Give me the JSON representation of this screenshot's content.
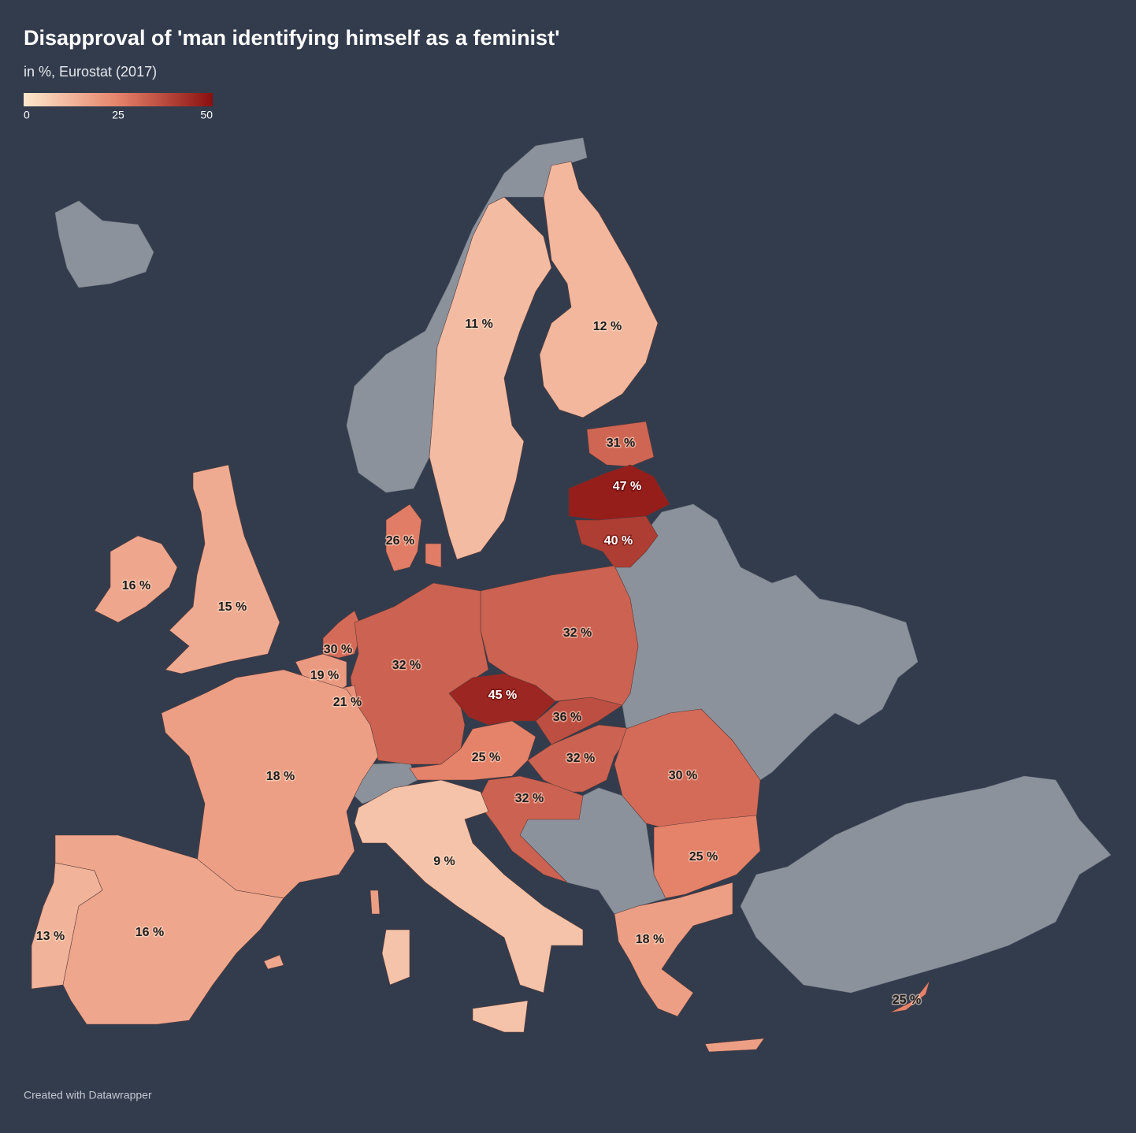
{
  "chart_data": {
    "type": "choropleth",
    "title": "Disapproval of 'man identifying himself as a feminist'",
    "subtitle": "in %, Eurostat (2017)",
    "colorlim": [
      0,
      50
    ],
    "colorticks": [
      0,
      25,
      50
    ],
    "colors": [
      "#fee8cc",
      "#e5826a",
      "#8a0f0f"
    ],
    "values": [
      11,
      12,
      31,
      47,
      40,
      26,
      16,
      15,
      32,
      30,
      32,
      19,
      21,
      45,
      36,
      25,
      32,
      30,
      18,
      32,
      25,
      9,
      13,
      16,
      18,
      25
    ],
    "value_labels": [
      "11 %",
      "12 %",
      "31 %",
      "47 %",
      "40 %",
      "26 %",
      "16 %",
      "15 %",
      "32 %",
      "30 %",
      "32 %",
      "19 %",
      "21 %",
      "45 %",
      "36 %",
      "25 %",
      "32 %",
      "30 %",
      "18 %",
      "32 %",
      "25 %",
      "9 %",
      "13 %",
      "16 %",
      "18 %",
      "25 %"
    ],
    "source": "Created with Datawrapper"
  }
}
